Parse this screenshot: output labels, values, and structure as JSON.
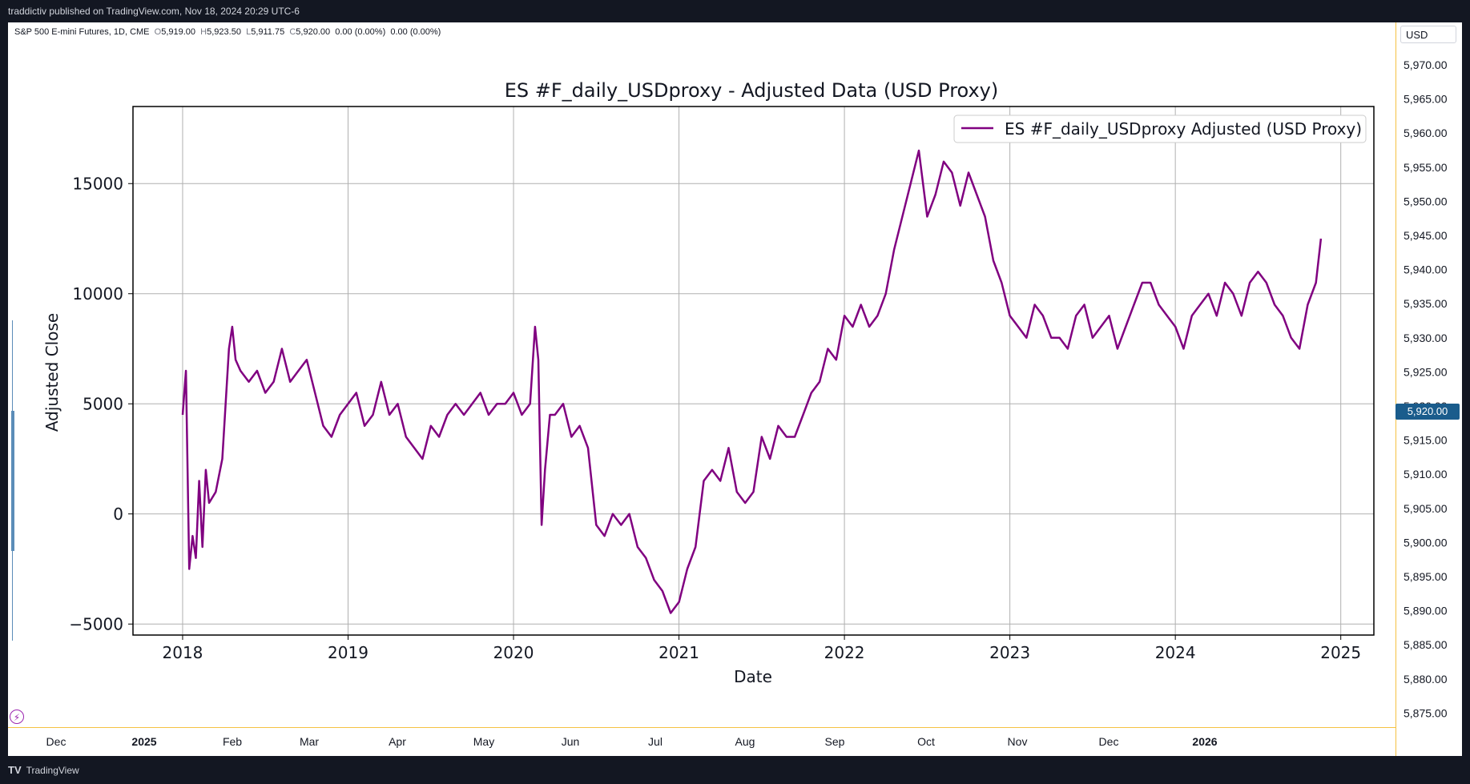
{
  "header": {
    "published_text": "traddictiv published on TradingView.com, Nov 18, 2024 20:29 UTC-6"
  },
  "symbol": {
    "name": "S&P 500 E-mini Futures, 1D, CME",
    "open_label": "O",
    "open": "5,919.00",
    "high_label": "H",
    "high": "5,923.50",
    "low_label": "L",
    "low": "5,911.75",
    "close_label": "C",
    "close": "5,920.00",
    "change": "0.00 (0.00%)",
    "change2": "0.00 (0.00%)"
  },
  "currency_button": "USD",
  "price_axis": {
    "labels": [
      "5,970.00",
      "5,965.00",
      "5,960.00",
      "5,955.00",
      "5,950.00",
      "5,945.00",
      "5,940.00",
      "5,935.00",
      "5,930.00",
      "5,925.00",
      "5,920.00",
      "5,915.00",
      "5,910.00",
      "5,905.00",
      "5,900.00",
      "5,895.00",
      "5,890.00",
      "5,885.00",
      "5,880.00",
      "5,875.00"
    ],
    "current_price": "5,920.00",
    "current_price_color": "#1a5c8c"
  },
  "time_axis": {
    "labels": [
      "Dec",
      "2025",
      "Feb",
      "Mar",
      "Apr",
      "May",
      "Jun",
      "Jul",
      "Aug",
      "Sep",
      "Oct",
      "Nov",
      "Dec",
      "2026"
    ]
  },
  "footer": {
    "logo": "TV",
    "brand": "TradingView"
  },
  "chart_data": {
    "type": "line",
    "title": "ES #F_daily_USDproxy - Adjusted Data (USD Proxy)",
    "xlabel": "Date",
    "ylabel": "Adjusted Close",
    "xlim": [
      2017.7,
      2025.2
    ],
    "ylim": [
      -5500,
      18500
    ],
    "xticks": [
      "2018",
      "2019",
      "2020",
      "2021",
      "2022",
      "2023",
      "2024",
      "2025"
    ],
    "yticks": [
      "−5000",
      "0",
      "5000",
      "10000",
      "15000"
    ],
    "grid": true,
    "legend_position": "top-right",
    "series": [
      {
        "name": "ES #F_daily_USDproxy Adjusted (USD Proxy)",
        "color": "#800080",
        "x": [
          2018.0,
          2018.02,
          2018.04,
          2018.06,
          2018.08,
          2018.1,
          2018.12,
          2018.14,
          2018.16,
          2018.2,
          2018.24,
          2018.28,
          2018.3,
          2018.32,
          2018.35,
          2018.4,
          2018.45,
          2018.5,
          2018.55,
          2018.6,
          2018.65,
          2018.7,
          2018.75,
          2018.8,
          2018.85,
          2018.9,
          2018.95,
          2019.0,
          2019.05,
          2019.1,
          2019.15,
          2019.2,
          2019.25,
          2019.3,
          2019.35,
          2019.4,
          2019.45,
          2019.5,
          2019.55,
          2019.6,
          2019.65,
          2019.7,
          2019.75,
          2019.8,
          2019.85,
          2019.9,
          2019.95,
          2020.0,
          2020.05,
          2020.1,
          2020.13,
          2020.15,
          2020.17,
          2020.19,
          2020.22,
          2020.25,
          2020.3,
          2020.35,
          2020.4,
          2020.45,
          2020.5,
          2020.55,
          2020.6,
          2020.65,
          2020.7,
          2020.75,
          2020.8,
          2020.85,
          2020.9,
          2020.95,
          2021.0,
          2021.05,
          2021.1,
          2021.15,
          2021.2,
          2021.25,
          2021.3,
          2021.35,
          2021.4,
          2021.45,
          2021.5,
          2021.55,
          2021.6,
          2021.65,
          2021.7,
          2021.75,
          2021.8,
          2021.85,
          2021.9,
          2021.95,
          2022.0,
          2022.05,
          2022.1,
          2022.15,
          2022.2,
          2022.25,
          2022.3,
          2022.35,
          2022.4,
          2022.45,
          2022.5,
          2022.55,
          2022.6,
          2022.65,
          2022.7,
          2022.75,
          2022.8,
          2022.85,
          2022.9,
          2022.95,
          2023.0,
          2023.05,
          2023.1,
          2023.15,
          2023.2,
          2023.25,
          2023.3,
          2023.35,
          2023.4,
          2023.45,
          2023.5,
          2023.55,
          2023.6,
          2023.65,
          2023.7,
          2023.75,
          2023.8,
          2023.85,
          2023.9,
          2023.95,
          2024.0,
          2024.05,
          2024.1,
          2024.15,
          2024.2,
          2024.25,
          2024.3,
          2024.35,
          2024.4,
          2024.45,
          2024.5,
          2024.55,
          2024.6,
          2024.65,
          2024.7,
          2024.75,
          2024.8,
          2024.85,
          2024.88
        ],
        "y": [
          4500,
          6500,
          -2500,
          -1000,
          -2000,
          1500,
          -1500,
          2000,
          500,
          1000,
          2500,
          7500,
          8500,
          7000,
          6500,
          6000,
          6500,
          5500,
          6000,
          7500,
          6000,
          6500,
          7000,
          5500,
          4000,
          3500,
          4500,
          5000,
          5500,
          4000,
          4500,
          6000,
          4500,
          5000,
          3500,
          3000,
          2500,
          4000,
          3500,
          4500,
          5000,
          4500,
          5000,
          5500,
          4500,
          5000,
          5000,
          5500,
          4500,
          5000,
          8500,
          7000,
          -500,
          2000,
          4500,
          4500,
          5000,
          3500,
          4000,
          3000,
          -500,
          -1000,
          0,
          -500,
          0,
          -1500,
          -2000,
          -3000,
          -3500,
          -4500,
          -4000,
          -2500,
          -1500,
          1500,
          2000,
          1500,
          3000,
          1000,
          500,
          1000,
          3500,
          2500,
          4000,
          3500,
          3500,
          4500,
          5500,
          6000,
          7500,
          7000,
          9000,
          8500,
          9500,
          8500,
          9000,
          10000,
          12000,
          13500,
          15000,
          16500,
          13500,
          14500,
          16000,
          15500,
          14000,
          15500,
          14500,
          13500,
          11500,
          10500,
          9000,
          8500,
          8000,
          9500,
          9000,
          8000,
          8000,
          7500,
          9000,
          9500,
          8000,
          8500,
          9000,
          7500,
          8500,
          9500,
          10500,
          10500,
          9500,
          9000,
          8500,
          7500,
          9000,
          9500,
          10000,
          9000,
          10500,
          10000,
          9000,
          10500,
          11000,
          10500,
          9500,
          9000,
          8000,
          7500,
          9500,
          10500,
          12500
        ]
      }
    ]
  }
}
